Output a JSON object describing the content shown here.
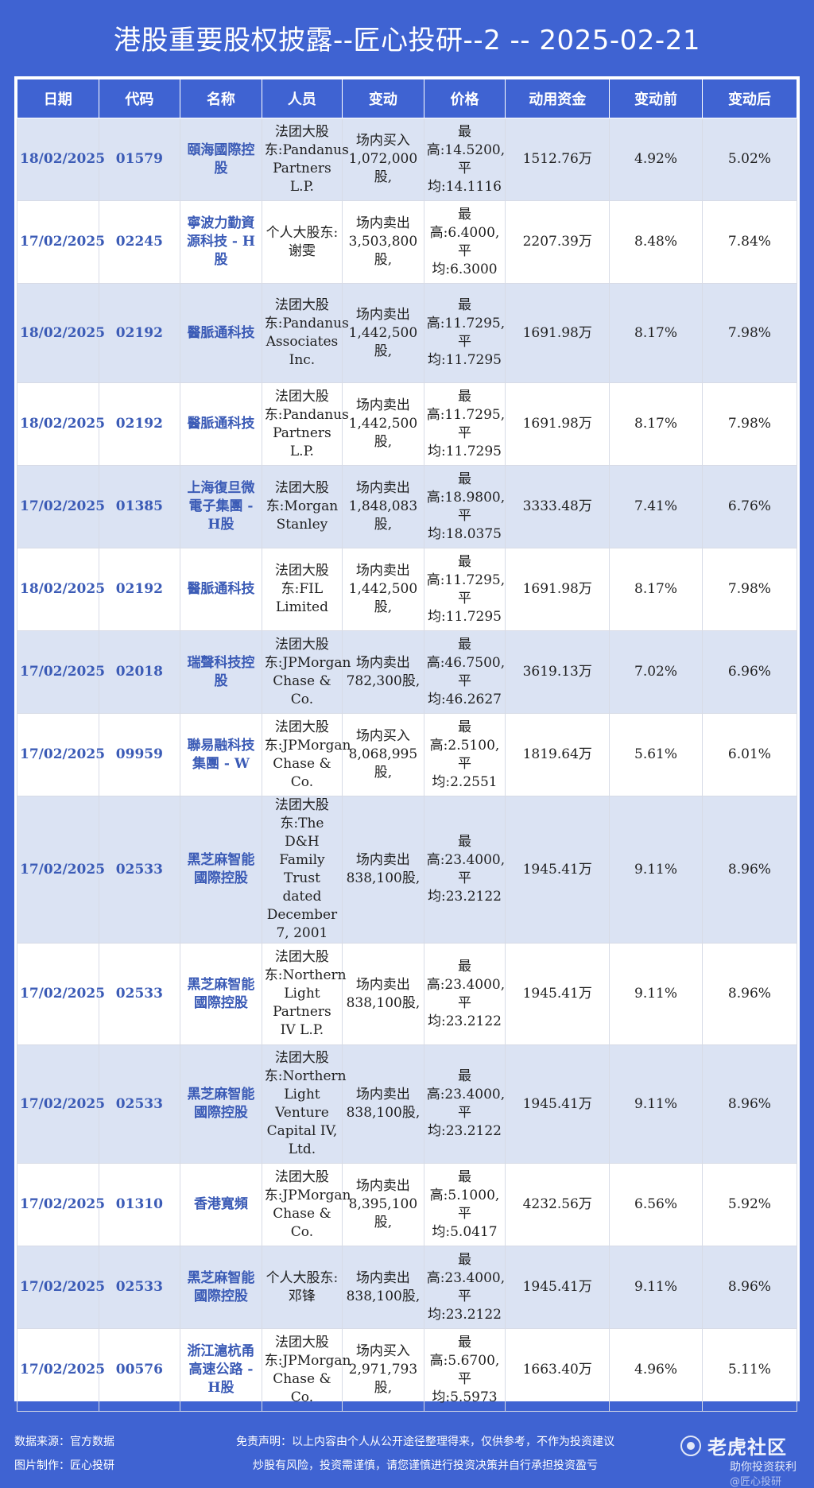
{
  "title": "港股重要股权披露--匠心投研--2 -- 2025-02-21",
  "headers": [
    "日期",
    "代码",
    "名称",
    "人员",
    "变动",
    "价格",
    "动用资金",
    "变动前",
    "变动后"
  ],
  "rows": [
    {
      "date": "18/02/2025",
      "code": "01579",
      "name": "頤海國際控股",
      "person": "法团大股东:Pandanus Partners L.P.",
      "change": "场内买入1,072,000股,",
      "price": "最高:14.5200,平均:14.1116",
      "funds": "1512.76万",
      "before": "4.92%",
      "after": "5.02%"
    },
    {
      "date": "17/02/2025",
      "code": "02245",
      "name": "寧波力勤資源科技 - H股",
      "person": "个人大股东:谢雯",
      "change": "场内卖出3,503,800股,",
      "price": "最高:6.4000,平均:6.3000",
      "funds": "2207.39万",
      "before": "8.48%",
      "after": "7.84%"
    },
    {
      "date": "18/02/2025",
      "code": "02192",
      "name": "醫脈通科技",
      "person": "法团大股东:Pandanus Associates Inc.",
      "change": "场内卖出1,442,500股,",
      "price": "最高:11.7295,平均:11.7295",
      "funds": "1691.98万",
      "before": "8.17%",
      "after": "7.98%"
    },
    {
      "date": "18/02/2025",
      "code": "02192",
      "name": "醫脈通科技",
      "person": "法团大股东:Pandanus Partners L.P.",
      "change": "场内卖出1,442,500股,",
      "price": "最高:11.7295,平均:11.7295",
      "funds": "1691.98万",
      "before": "8.17%",
      "after": "7.98%"
    },
    {
      "date": "17/02/2025",
      "code": "01385",
      "name": "上海復旦微電子集團 - H股",
      "person": "法团大股东:Morgan Stanley",
      "change": "场内卖出1,848,083股,",
      "price": "最高:18.9800,平均:18.0375",
      "funds": "3333.48万",
      "before": "7.41%",
      "after": "6.76%"
    },
    {
      "date": "18/02/2025",
      "code": "02192",
      "name": "醫脈通科技",
      "person": "法团大股东:FIL Limited",
      "change": "场内卖出1,442,500股,",
      "price": "最高:11.7295,平均:11.7295",
      "funds": "1691.98万",
      "before": "8.17%",
      "after": "7.98%"
    },
    {
      "date": "17/02/2025",
      "code": "02018",
      "name": "瑞聲科技控股",
      "person": "法团大股东:JPMorgan Chase & Co.",
      "change": "场内卖出782,300股,",
      "price": "最高:46.7500,平均:46.2627",
      "funds": "3619.13万",
      "before": "7.02%",
      "after": "6.96%"
    },
    {
      "date": "17/02/2025",
      "code": "09959",
      "name": "聯易融科技集團 - W",
      "person": "法团大股东:JPMorgan Chase & Co.",
      "change": "场内买入8,068,995股,",
      "price": "最高:2.5100,平均:2.2551",
      "funds": "1819.64万",
      "before": "5.61%",
      "after": "6.01%"
    },
    {
      "date": "17/02/2025",
      "code": "02533",
      "name": "黑芝麻智能國際控股",
      "person": "法团大股东:The D&H Family Trust dated December 7, 2001",
      "change": "场内卖出838,100股,",
      "price": "最高:23.4000,平均:23.2122",
      "funds": "1945.41万",
      "before": "9.11%",
      "after": "8.96%"
    },
    {
      "date": "17/02/2025",
      "code": "02533",
      "name": "黑芝麻智能國際控股",
      "person": "法团大股东:Northern Light Partners IV L.P.",
      "change": "场内卖出838,100股,",
      "price": "最高:23.4000,平均:23.2122",
      "funds": "1945.41万",
      "before": "9.11%",
      "after": "8.96%"
    },
    {
      "date": "17/02/2025",
      "code": "02533",
      "name": "黑芝麻智能國際控股",
      "person": "法团大股东:Northern Light Venture Capital IV, Ltd.",
      "change": "场内卖出838,100股,",
      "price": "最高:23.4000,平均:23.2122",
      "funds": "1945.41万",
      "before": "9.11%",
      "after": "8.96%"
    },
    {
      "date": "17/02/2025",
      "code": "01310",
      "name": "香港寬頻",
      "person": "法团大股东:JPMorgan Chase & Co.",
      "change": "场内卖出8,395,100股,",
      "price": "最高:5.1000,平均:5.0417",
      "funds": "4232.56万",
      "before": "6.56%",
      "after": "5.92%"
    },
    {
      "date": "17/02/2025",
      "code": "02533",
      "name": "黑芝麻智能國際控股",
      "person": "个人大股东:邓锋",
      "change": "场内卖出838,100股,",
      "price": "最高:23.4000,平均:23.2122",
      "funds": "1945.41万",
      "before": "9.11%",
      "after": "8.96%"
    },
    {
      "date": "17/02/2025",
      "code": "00576",
      "name": "浙江滬杭甬高速公路 - H股",
      "person": "法团大股东:JPMorgan Chase & Co.",
      "change": "场内买入2,971,793股,",
      "price": "最高:5.6700,平均:5.5973",
      "funds": "1663.40万",
      "before": "4.96%",
      "after": "5.11%"
    }
  ],
  "footer": {
    "source": "数据来源：官方数据",
    "maker": "图片制作：匠心投研",
    "disclaimer_1": "免责声明：以上内容由个人从公开途径整理得来，仅供参考，不作为投资建议",
    "disclaimer_2": "炒股有风险，投资需谨慎，请您谨慎进行投资决策并自行承担投资盈亏",
    "watermark_logo": "老虎社区",
    "watermark_sub": "助你投资获利",
    "watermark_handle": "@匠心投研"
  },
  "icons": {
    "watermark": "tiger-logo-icon"
  },
  "colors": {
    "header_bg": "#3f63d2",
    "row_shade": "#dbe3f3",
    "link_text": "#3b5bb6"
  }
}
